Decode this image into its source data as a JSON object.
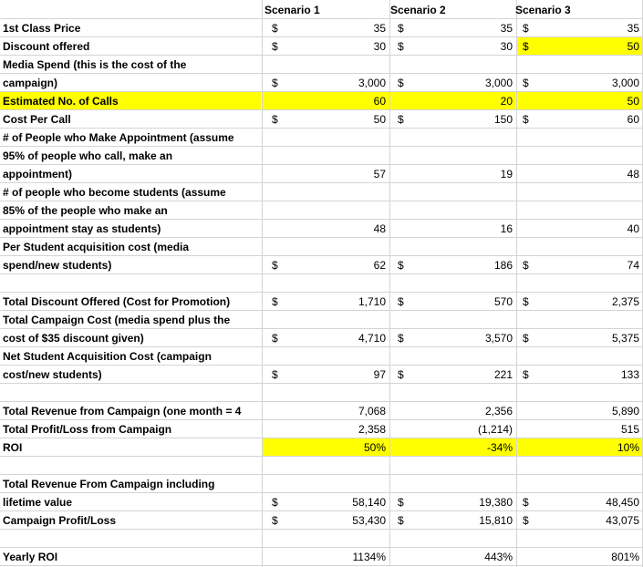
{
  "columns": [
    "Scenario 1",
    "Scenario 2",
    "Scenario 3"
  ],
  "rows": [
    {
      "label": [
        "1st Class Price"
      ],
      "d": [
        "$",
        "$",
        "$"
      ],
      "v": [
        "35",
        "35",
        "35"
      ]
    },
    {
      "label": [
        "Discount offered"
      ],
      "d": [
        "$",
        "$",
        "$"
      ],
      "v": [
        "30",
        "30",
        "50"
      ]
    },
    {
      "label": [
        "Media Spend (this is the  cost of the",
        "campaign)"
      ],
      "d": [
        "$",
        "$",
        "$"
      ],
      "v": [
        "3,000",
        "3,000",
        "3,000"
      ]
    },
    {
      "label": [
        "Estimated No. of Calls"
      ],
      "d": [
        "",
        "",
        ""
      ],
      "v": [
        "60",
        "20",
        "50"
      ]
    },
    {
      "label": [
        "Cost Per Call"
      ],
      "d": [
        "$",
        "$",
        "$"
      ],
      "v": [
        "50",
        "150",
        "60"
      ]
    },
    {
      "label": [
        "# of People who Make Appointment (assume",
        "95% of people who call, make an",
        "appointment)"
      ],
      "d": [
        "",
        "",
        ""
      ],
      "v": [
        "57",
        "19",
        "48"
      ]
    },
    {
      "label": [
        "# of people who become students (assume",
        "85% of the people who make an",
        "appointment stay as students)"
      ],
      "d": [
        "",
        "",
        ""
      ],
      "v": [
        "48",
        "16",
        "40"
      ]
    },
    {
      "label": [
        " Per Student acquisition cost (media",
        "spend/new students)"
      ],
      "d": [
        "$",
        "$",
        "$"
      ],
      "v": [
        "62",
        "186",
        "74"
      ]
    },
    {
      "label": [
        "Total Discount Offered (Cost for Promotion)"
      ],
      "d": [
        "$",
        "$",
        "$"
      ],
      "v": [
        "1,710",
        "570",
        "2,375"
      ]
    },
    {
      "label": [
        "Total Campaign Cost (media spend plus the",
        "cost of $35 discount given)"
      ],
      "d": [
        "$",
        "$",
        "$"
      ],
      "v": [
        "4,710",
        "3,570",
        "5,375"
      ]
    },
    {
      "label": [
        "Net Student Acquisition Cost (campaign",
        "cost/new students)"
      ],
      "d": [
        "$",
        "$",
        "$"
      ],
      "v": [
        "97",
        "221",
        "133"
      ]
    },
    {
      "label": [
        "Total Revenue from Campaign (one month = 4"
      ],
      "d": [
        "",
        "",
        ""
      ],
      "v": [
        "7,068",
        "2,356",
        "5,890"
      ]
    },
    {
      "label": [
        "Total Profit/Loss from Campaign"
      ],
      "d": [
        "",
        "",
        ""
      ],
      "v": [
        "2,358",
        "(1,214)",
        "515"
      ]
    },
    {
      "label": [
        "ROI"
      ],
      "d": [
        "",
        "",
        ""
      ],
      "v": [
        "50%",
        "-34%",
        "10%"
      ]
    },
    {
      "label": [
        "Total Revenue From Campaign including",
        "lifetime value"
      ],
      "d": [
        "$",
        "$",
        "$"
      ],
      "v": [
        "58,140",
        "19,380",
        "48,450"
      ]
    },
    {
      "label": [
        "Campaign Profit/Loss"
      ],
      "d": [
        "$",
        "$",
        "$"
      ],
      "v": [
        "53,430",
        "15,810",
        "43,075"
      ]
    },
    {
      "label": [
        "Yearly ROI"
      ],
      "d": [
        "",
        "",
        ""
      ],
      "v": [
        "1134%",
        "443%",
        "801%"
      ]
    }
  ],
  "highlight_color": "#ffff00"
}
